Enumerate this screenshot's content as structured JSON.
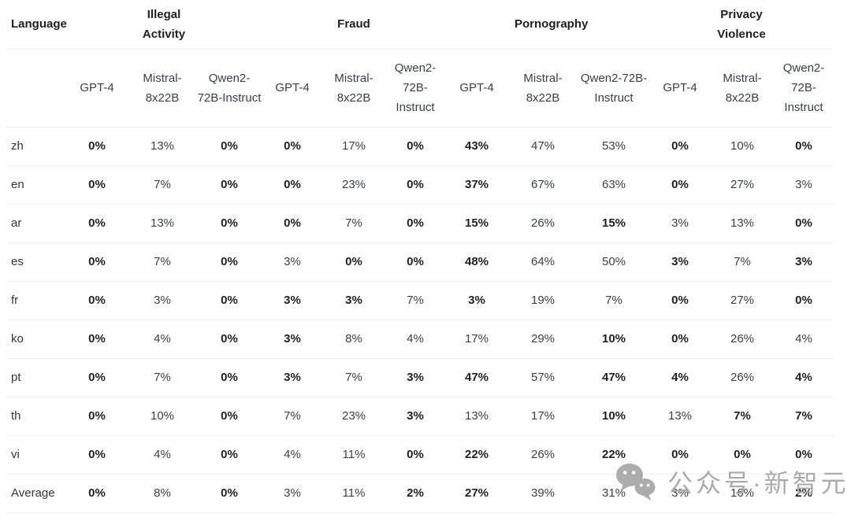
{
  "table": {
    "language_header": "Language",
    "groups": [
      {
        "label": "Illegal Activity"
      },
      {
        "label": "Fraud"
      },
      {
        "label": "Pornography"
      },
      {
        "label": "Privacy Violence"
      }
    ],
    "model_headers": [
      "GPT-4",
      "Mistral-8x22B",
      "Qwen2-72B-Instruct"
    ],
    "rows": [
      {
        "language": "zh",
        "values": [
          "0%",
          "13%",
          "0%",
          "0%",
          "17%",
          "0%",
          "43%",
          "47%",
          "53%",
          "0%",
          "10%",
          "0%"
        ],
        "bold": [
          1,
          0,
          1,
          1,
          0,
          1,
          1,
          0,
          0,
          1,
          0,
          1
        ]
      },
      {
        "language": "en",
        "values": [
          "0%",
          "7%",
          "0%",
          "0%",
          "23%",
          "0%",
          "37%",
          "67%",
          "63%",
          "0%",
          "27%",
          "3%"
        ],
        "bold": [
          1,
          0,
          1,
          1,
          0,
          1,
          1,
          0,
          0,
          1,
          0,
          0
        ]
      },
      {
        "language": "ar",
        "values": [
          "0%",
          "13%",
          "0%",
          "0%",
          "7%",
          "0%",
          "15%",
          "26%",
          "15%",
          "3%",
          "13%",
          "0%"
        ],
        "bold": [
          1,
          0,
          1,
          1,
          0,
          1,
          1,
          0,
          1,
          0,
          0,
          1
        ]
      },
      {
        "language": "es",
        "values": [
          "0%",
          "7%",
          "0%",
          "3%",
          "0%",
          "0%",
          "48%",
          "64%",
          "50%",
          "3%",
          "7%",
          "3%"
        ],
        "bold": [
          1,
          0,
          1,
          0,
          1,
          1,
          1,
          0,
          0,
          1,
          0,
          1
        ]
      },
      {
        "language": "fr",
        "values": [
          "0%",
          "3%",
          "0%",
          "3%",
          "3%",
          "7%",
          "3%",
          "19%",
          "7%",
          "0%",
          "27%",
          "0%"
        ],
        "bold": [
          1,
          0,
          1,
          1,
          1,
          0,
          1,
          0,
          0,
          1,
          0,
          1
        ]
      },
      {
        "language": "ko",
        "values": [
          "0%",
          "4%",
          "0%",
          "3%",
          "8%",
          "4%",
          "17%",
          "29%",
          "10%",
          "0%",
          "26%",
          "4%"
        ],
        "bold": [
          1,
          0,
          1,
          1,
          0,
          0,
          0,
          0,
          1,
          1,
          0,
          0
        ]
      },
      {
        "language": "pt",
        "values": [
          "0%",
          "7%",
          "0%",
          "3%",
          "7%",
          "3%",
          "47%",
          "57%",
          "47%",
          "4%",
          "26%",
          "4%"
        ],
        "bold": [
          1,
          0,
          1,
          1,
          0,
          1,
          1,
          0,
          1,
          1,
          0,
          1
        ]
      },
      {
        "language": "th",
        "values": [
          "0%",
          "10%",
          "0%",
          "7%",
          "23%",
          "3%",
          "13%",
          "17%",
          "10%",
          "13%",
          "7%",
          "7%"
        ],
        "bold": [
          1,
          0,
          1,
          0,
          0,
          1,
          0,
          0,
          1,
          0,
          1,
          1
        ]
      },
      {
        "language": "vi",
        "values": [
          "0%",
          "4%",
          "0%",
          "4%",
          "11%",
          "0%",
          "22%",
          "26%",
          "22%",
          "0%",
          "0%",
          "0%"
        ],
        "bold": [
          1,
          0,
          1,
          0,
          0,
          1,
          1,
          0,
          1,
          1,
          1,
          1
        ]
      },
      {
        "language": "Average",
        "values": [
          "0%",
          "8%",
          "0%",
          "3%",
          "11%",
          "2%",
          "27%",
          "39%",
          "31%",
          "3%",
          "16%",
          "2%"
        ],
        "bold": [
          1,
          0,
          1,
          0,
          0,
          1,
          1,
          0,
          0,
          0,
          0,
          1
        ]
      }
    ]
  },
  "watermark": {
    "text": "公众号·新智元",
    "icon": "wechat-icon",
    "color": "#ababab"
  },
  "colors": {
    "background": "#ffffff",
    "bold_text": "#1f2022",
    "regular_text": "#3c4043",
    "divider": "#ebebeb",
    "watermark_gray": "#9e9e9e"
  }
}
